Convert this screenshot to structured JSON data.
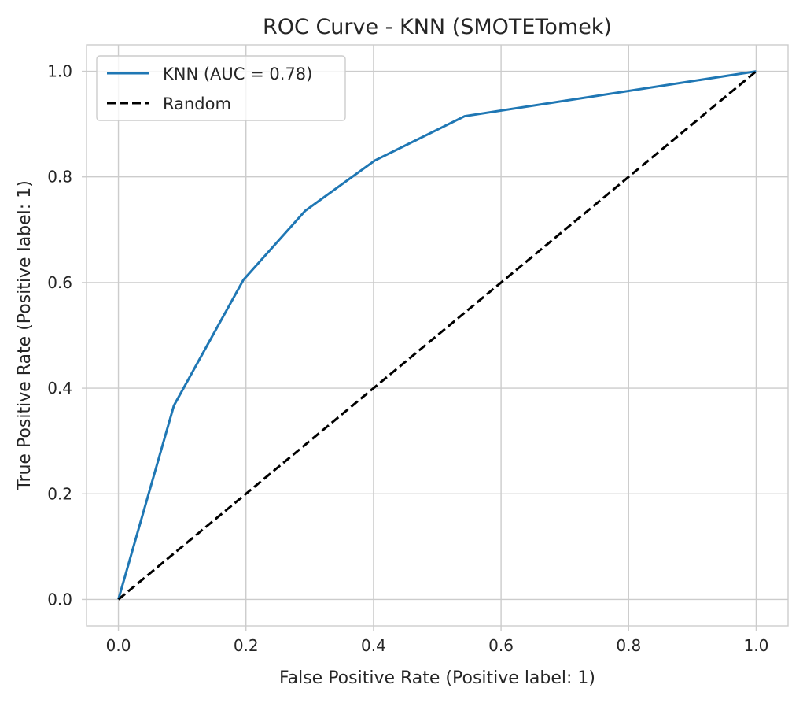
{
  "chart_data": {
    "type": "line",
    "title": "ROC Curve - KNN (SMOTETomek)",
    "xlabel": "False Positive Rate (Positive label: 1)",
    "ylabel": "True Positive Rate (Positive label: 1)",
    "xlim": [
      -0.05,
      1.05
    ],
    "ylim": [
      -0.05,
      1.05
    ],
    "xticks": [
      0.0,
      0.2,
      0.4,
      0.6,
      0.8,
      1.0
    ],
    "yticks": [
      0.0,
      0.2,
      0.4,
      0.6,
      0.8,
      1.0
    ],
    "grid": true,
    "legend_position": "top-left",
    "series": [
      {
        "name": "KNN (AUC = 0.78)",
        "style": "solid",
        "color": "#1f77b4",
        "x": [
          0.0,
          0.087,
          0.196,
          0.293,
          0.402,
          0.543,
          1.0
        ],
        "y": [
          0.0,
          0.367,
          0.605,
          0.736,
          0.831,
          0.915,
          1.0
        ]
      },
      {
        "name": "Random",
        "style": "dashed",
        "color": "#000000",
        "x": [
          0.0,
          1.0
        ],
        "y": [
          0.0,
          1.0
        ]
      }
    ]
  }
}
